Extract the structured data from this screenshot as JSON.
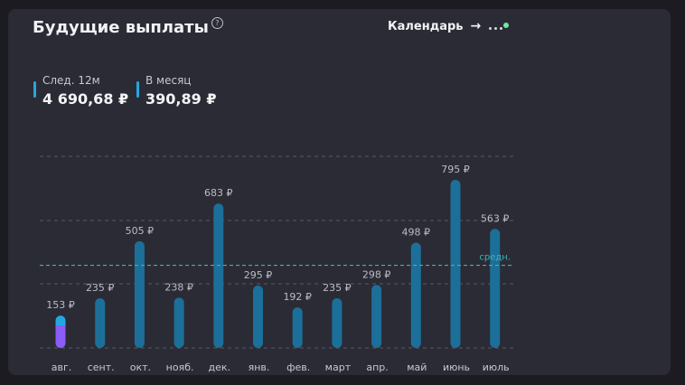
{
  "header": {
    "title": "Будущие выплаты",
    "help_icon": "?",
    "calendar_label": "Календарь",
    "arrow_icon": "→"
  },
  "stats": [
    {
      "label": "След. 12м",
      "value": "4 690,68 ₽"
    },
    {
      "label": "В месяц",
      "value": "390,89 ₽"
    }
  ],
  "colors": {
    "bar": "#1c6f98",
    "bar_current_top": "#22a8e0",
    "bar_current_bottom": "#8b5cf6",
    "average_line": "#3fb3b5",
    "grid": "#5a5a66",
    "notify": "#6ee7a3"
  },
  "chart_data": {
    "type": "bar",
    "categories": [
      "авг.",
      "сент.",
      "окт.",
      "нояб.",
      "дек.",
      "янв.",
      "фев.",
      "март",
      "апр.",
      "май",
      "июнь",
      "июль"
    ],
    "values": [
      153,
      235,
      505,
      238,
      683,
      295,
      192,
      235,
      298,
      498,
      795,
      563
    ],
    "value_labels": [
      "153 ₽",
      "235 ₽",
      "505 ₽",
      "238 ₽",
      "683 ₽",
      "295 ₽",
      "192 ₽",
      "235 ₽",
      "298 ₽",
      "498 ₽",
      "795 ₽",
      "563 ₽"
    ],
    "average": 390.89,
    "average_label": "средн.",
    "unit": "₽",
    "ylim": [
      0,
      900
    ],
    "grid": true,
    "grid_style": "dashed"
  }
}
